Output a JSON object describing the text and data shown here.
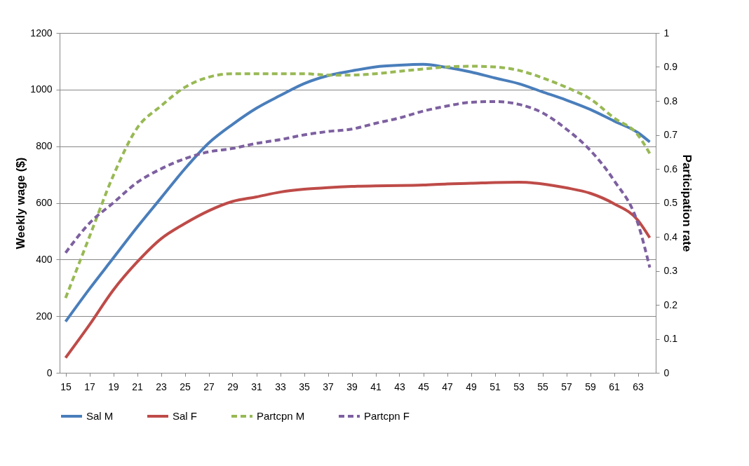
{
  "chart_data": {
    "type": "line",
    "ylabel": "Weekly wage ($)",
    "y2label": "Participation rate",
    "x": [
      15,
      17,
      19,
      21,
      23,
      25,
      27,
      29,
      31,
      33,
      35,
      37,
      39,
      41,
      43,
      45,
      47,
      49,
      51,
      53,
      55,
      57,
      59,
      61,
      63,
      64
    ],
    "xlim": [
      14.5,
      64.5
    ],
    "xticks": [
      15,
      17,
      19,
      21,
      23,
      25,
      27,
      29,
      31,
      33,
      35,
      37,
      39,
      41,
      43,
      45,
      47,
      49,
      51,
      53,
      55,
      57,
      59,
      61,
      63
    ],
    "ylim": [
      0,
      1200
    ],
    "yticks": [
      0,
      200,
      400,
      600,
      800,
      1000,
      1200
    ],
    "y2lim": [
      0,
      1
    ],
    "y2ticks": [
      0,
      0.1,
      0.2,
      0.3,
      0.4,
      0.5,
      0.6,
      0.7,
      0.8,
      0.9,
      1
    ],
    "grid": "y",
    "legend": "bottom",
    "marker": "none",
    "series": [
      {
        "name": "Sal M",
        "color": "#4a7ebb",
        "line_style": "solid",
        "values": [
          181,
          296,
          405,
          514,
          617,
          720,
          811,
          877,
          934,
          979,
          1021,
          1049,
          1066,
          1080,
          1086,
          1089,
          1078,
          1062,
          1041,
          1021,
          992,
          963,
          930,
          889,
          848,
          815
        ]
      },
      {
        "name": "Sal F",
        "color": "#be4b48",
        "line_style": "solid",
        "values": [
          53,
          169,
          292,
          391,
          473,
          527,
          572,
          605,
          621,
          638,
          648,
          654,
          658,
          660,
          661,
          663,
          667,
          669,
          672,
          673,
          667,
          653,
          634,
          597,
          539,
          477
        ]
      },
      {
        "name": "Partcpn M",
        "color": "#98b954",
        "line_style": "dashed",
        "axis": "y2",
        "values": [
          0.22,
          0.4,
          0.58,
          0.72,
          0.785,
          0.84,
          0.87,
          0.88,
          0.88,
          0.88,
          0.88,
          0.876,
          0.876,
          0.88,
          0.887,
          0.894,
          0.9,
          0.902,
          0.9,
          0.89,
          0.868,
          0.84,
          0.806,
          0.75,
          0.7,
          0.645
        ]
      },
      {
        "name": "Partcpn F",
        "color": "#7d60a0",
        "line_style": "dashed",
        "axis": "y2",
        "values": [
          0.353,
          0.44,
          0.5,
          0.56,
          0.6,
          0.63,
          0.65,
          0.66,
          0.675,
          0.686,
          0.7,
          0.71,
          0.717,
          0.734,
          0.75,
          0.77,
          0.785,
          0.796,
          0.798,
          0.79,
          0.765,
          0.717,
          0.655,
          0.566,
          0.44,
          0.31
        ]
      }
    ]
  }
}
